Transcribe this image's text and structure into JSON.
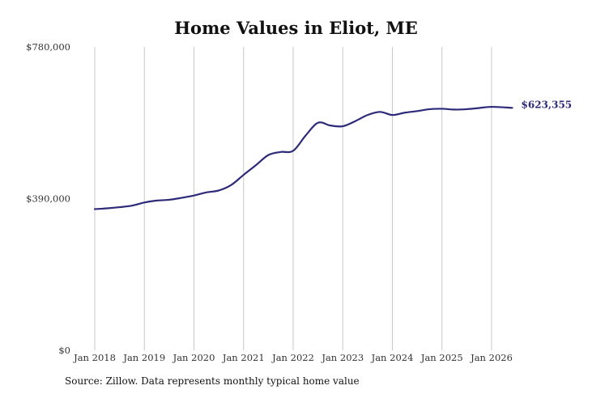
{
  "chart_data": {
    "type": "line",
    "title": "Home Values in Eliot, ME",
    "xlabel": "",
    "ylabel": "",
    "ylim": [
      0,
      780000
    ],
    "y_ticks": [
      0,
      390000,
      780000
    ],
    "y_tick_labels": [
      "$0",
      "$390,000",
      "$780,000"
    ],
    "x_ticks": [
      "2018-01",
      "2019-01",
      "2020-01",
      "2021-01",
      "2022-01",
      "2023-01",
      "2024-01",
      "2025-01",
      "2026-01"
    ],
    "x_tick_labels": [
      "Jan 2018",
      "Jan 2019",
      "Jan 2020",
      "Jan 2021",
      "Jan 2022",
      "Jan 2023",
      "Jan 2024",
      "Jan 2025",
      "Jan 2026"
    ],
    "grid": {
      "vertical": true,
      "horizontal": false
    },
    "line_color": "#2e2a7a",
    "series": [
      {
        "end_label": "$623,355",
        "points": [
          {
            "date": "2018-01",
            "value": 363000
          },
          {
            "date": "2018-04",
            "value": 365000
          },
          {
            "date": "2018-07",
            "value": 368000
          },
          {
            "date": "2018-10",
            "value": 372000
          },
          {
            "date": "2019-01",
            "value": 380000
          },
          {
            "date": "2019-04",
            "value": 385000
          },
          {
            "date": "2019-07",
            "value": 387000
          },
          {
            "date": "2019-10",
            "value": 392000
          },
          {
            "date": "2020-01",
            "value": 398000
          },
          {
            "date": "2020-04",
            "value": 406000
          },
          {
            "date": "2020-07",
            "value": 411000
          },
          {
            "date": "2020-10",
            "value": 425000
          },
          {
            "date": "2021-01",
            "value": 451000
          },
          {
            "date": "2021-04",
            "value": 476000
          },
          {
            "date": "2021-07",
            "value": 502000
          },
          {
            "date": "2021-10",
            "value": 510000
          },
          {
            "date": "2022-01",
            "value": 513000
          },
          {
            "date": "2022-04",
            "value": 552000
          },
          {
            "date": "2022-07",
            "value": 585000
          },
          {
            "date": "2022-10",
            "value": 578000
          },
          {
            "date": "2023-01",
            "value": 576000
          },
          {
            "date": "2023-04",
            "value": 589000
          },
          {
            "date": "2023-07",
            "value": 605000
          },
          {
            "date": "2023-10",
            "value": 613000
          },
          {
            "date": "2024-01",
            "value": 605000
          },
          {
            "date": "2024-04",
            "value": 611000
          },
          {
            "date": "2024-07",
            "value": 615000
          },
          {
            "date": "2024-10",
            "value": 620000
          },
          {
            "date": "2025-01",
            "value": 621000
          },
          {
            "date": "2025-04",
            "value": 619000
          },
          {
            "date": "2025-07",
            "value": 620000
          },
          {
            "date": "2025-10",
            "value": 623000
          },
          {
            "date": "2026-01",
            "value": 626000
          },
          {
            "date": "2026-06",
            "value": 623355
          }
        ]
      }
    ]
  },
  "source_note": "Source: Zillow. Data represents monthly typical home value"
}
